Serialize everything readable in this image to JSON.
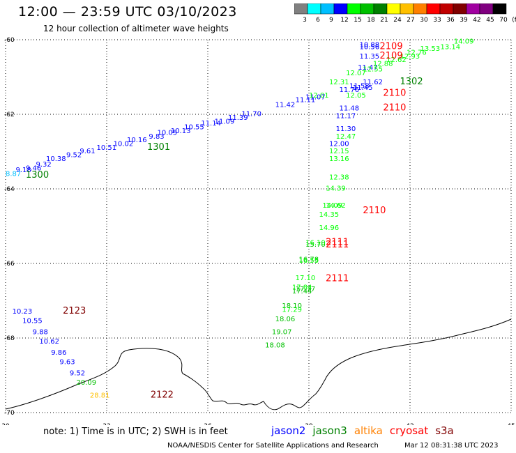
{
  "header": {
    "title": "12:00 — 23:59 UTC 03/10/2023",
    "subtitle": "12 hour collection of altimeter wave heights"
  },
  "colorbar": {
    "labels": [
      "3",
      "6",
      "9",
      "12",
      "15",
      "18",
      "21",
      "24",
      "27",
      "30",
      "33",
      "36",
      "39",
      "42",
      "45",
      "70",
      "(ft)"
    ],
    "colors": [
      "#808080",
      "#00ffff",
      "#00bfff",
      "#0000ff",
      "#00ff00",
      "#00c000",
      "#008000",
      "#ffff00",
      "#ffc000",
      "#ff8000",
      "#ff0000",
      "#c00000",
      "#800000",
      "#a000a0",
      "#800080",
      "#000000"
    ]
  },
  "map": {
    "lon_range": [
      30,
      45
    ],
    "lat_range": [
      -70,
      -60
    ],
    "lon_labels": [
      "30",
      "33",
      "36",
      "39",
      "42",
      "45"
    ],
    "lat_labels": [
      "-60",
      "-62",
      "-64",
      "-66",
      "-68",
      "-70"
    ],
    "grid": "dotted"
  },
  "observations": [
    {
      "text": "10.88",
      "lon": 40.5,
      "lat": -60.2,
      "color": "#0000ff"
    },
    {
      "text": "10.56",
      "lon": 40.5,
      "lat": -60.25,
      "color": "#0000ff"
    },
    {
      "text": "11.35",
      "lon": 40.5,
      "lat": -60.5,
      "color": "#0000ff"
    },
    {
      "text": "11.47",
      "lon": 40.45,
      "lat": -60.8,
      "color": "#0000ff"
    },
    {
      "text": "11.62",
      "lon": 40.6,
      "lat": -61.2,
      "color": "#0000ff"
    },
    {
      "text": "11.58",
      "lon": 40.2,
      "lat": -61.3,
      "color": "#0000ff"
    },
    {
      "text": "11.45",
      "lon": 40.3,
      "lat": -61.35,
      "color": "#0000ff"
    },
    {
      "text": "11.76",
      "lon": 39.9,
      "lat": -61.4,
      "color": "#0000ff"
    },
    {
      "text": "11.48",
      "lon": 39.9,
      "lat": -61.9,
      "color": "#0000ff"
    },
    {
      "text": "11.17",
      "lon": 39.8,
      "lat": -62.1,
      "color": "#0000ff"
    },
    {
      "text": "11.30",
      "lon": 39.8,
      "lat": -62.45,
      "color": "#0000ff"
    },
    {
      "text": "12.00",
      "lon": 39.6,
      "lat": -62.85,
      "color": "#0000ff"
    },
    {
      "text": "11.07",
      "lon": 38.9,
      "lat": -61.6,
      "color": "#0000ff"
    },
    {
      "text": "11.11",
      "lon": 38.6,
      "lat": -61.67,
      "color": "#0000ff"
    },
    {
      "text": "11.42",
      "lon": 38.0,
      "lat": -61.8,
      "color": "#0000ff"
    },
    {
      "text": "11.70",
      "lon": 37.0,
      "lat": -62.05,
      "color": "#0000ff"
    },
    {
      "text": "11.39",
      "lon": 36.6,
      "lat": -62.15,
      "color": "#0000ff"
    },
    {
      "text": "11.09",
      "lon": 36.2,
      "lat": -62.25,
      "color": "#0000ff"
    },
    {
      "text": "11.14",
      "lon": 35.8,
      "lat": -62.3,
      "color": "#0000ff"
    },
    {
      "text": "10.55",
      "lon": 35.3,
      "lat": -62.4,
      "color": "#0000ff"
    },
    {
      "text": "10.13",
      "lon": 34.9,
      "lat": -62.5,
      "color": "#0000ff"
    },
    {
      "text": "10.05",
      "lon": 34.5,
      "lat": -62.55,
      "color": "#0000ff"
    },
    {
      "text": "9.83",
      "lon": 34.25,
      "lat": -62.65,
      "color": "#0000ff"
    },
    {
      "text": "10.16",
      "lon": 33.6,
      "lat": -62.75,
      "color": "#0000ff"
    },
    {
      "text": "10.02",
      "lon": 33.2,
      "lat": -62.85,
      "color": "#0000ff"
    },
    {
      "text": "10.51",
      "lon": 32.7,
      "lat": -62.95,
      "color": "#0000ff"
    },
    {
      "text": "9.61",
      "lon": 32.2,
      "lat": -63.05,
      "color": "#0000ff"
    },
    {
      "text": "9.52",
      "lon": 31.8,
      "lat": -63.15,
      "color": "#0000ff"
    },
    {
      "text": "10.38",
      "lon": 31.2,
      "lat": -63.25,
      "color": "#0000ff"
    },
    {
      "text": "9.32",
      "lon": 30.9,
      "lat": -63.4,
      "color": "#0000ff"
    },
    {
      "text": "9.46",
      "lon": 30.6,
      "lat": -63.5,
      "color": "#0000ff"
    },
    {
      "text": "9.18",
      "lon": 30.3,
      "lat": -63.55,
      "color": "#0000ff"
    },
    {
      "text": "8.87",
      "lon": 30.0,
      "lat": -63.65,
      "color": "#00bfff"
    },
    {
      "text": "10.23",
      "lon": 30.2,
      "lat": -67.35,
      "color": "#0000ff"
    },
    {
      "text": "10.55",
      "lon": 30.5,
      "lat": -67.6,
      "color": "#0000ff"
    },
    {
      "text": "9.88",
      "lon": 30.8,
      "lat": -67.9,
      "color": "#0000ff"
    },
    {
      "text": "10.62",
      "lon": 31.0,
      "lat": -68.15,
      "color": "#0000ff"
    },
    {
      "text": "9.86",
      "lon": 31.35,
      "lat": -68.45,
      "color": "#0000ff"
    },
    {
      "text": "9.63",
      "lon": 31.6,
      "lat": -68.7,
      "color": "#0000ff"
    },
    {
      "text": "9.52",
      "lon": 31.9,
      "lat": -69.0,
      "color": "#0000ff"
    },
    {
      "text": "20.09",
      "lon": 32.1,
      "lat": -69.25,
      "color": "#00c000"
    },
    {
      "text": "28.81",
      "lon": 32.5,
      "lat": -69.6,
      "color": "#ffc000"
    },
    {
      "text": "14.09",
      "lon": 43.3,
      "lat": -60.1,
      "color": "#00ff00"
    },
    {
      "text": "13.14",
      "lon": 42.9,
      "lat": -60.25,
      "color": "#00ff00"
    },
    {
      "text": "13.53",
      "lon": 42.3,
      "lat": -60.3,
      "color": "#00ff00"
    },
    {
      "text": "12.76",
      "lon": 41.9,
      "lat": -60.4,
      "color": "#00ff00"
    },
    {
      "text": "12.93",
      "lon": 41.7,
      "lat": -60.5,
      "color": "#00ff00"
    },
    {
      "text": "12.62",
      "lon": 41.3,
      "lat": -60.6,
      "color": "#00ff00"
    },
    {
      "text": "12.88",
      "lon": 40.9,
      "lat": -60.7,
      "color": "#00ff00"
    },
    {
      "text": "12.55",
      "lon": 40.6,
      "lat": -60.85,
      "color": "#00ff00"
    },
    {
      "text": "12.07",
      "lon": 40.1,
      "lat": -60.95,
      "color": "#00ff00"
    },
    {
      "text": "12.31",
      "lon": 39.6,
      "lat": -61.2,
      "color": "#00ff00"
    },
    {
      "text": "12.05",
      "lon": 40.1,
      "lat": -61.55,
      "color": "#00ff00"
    },
    {
      "text": "12.01",
      "lon": 39.0,
      "lat": -61.55,
      "color": "#00ff00"
    },
    {
      "text": "12.47",
      "lon": 39.8,
      "lat": -62.65,
      "color": "#00ff00"
    },
    {
      "text": "12.15",
      "lon": 39.6,
      "lat": -63.05,
      "color": "#00ff00"
    },
    {
      "text": "13.16",
      "lon": 39.6,
      "lat": -63.25,
      "color": "#00ff00"
    },
    {
      "text": "12.38",
      "lon": 39.6,
      "lat": -63.75,
      "color": "#00ff00"
    },
    {
      "text": "14.39",
      "lon": 39.5,
      "lat": -64.05,
      "color": "#00ff00"
    },
    {
      "text": "14.09",
      "lon": 39.4,
      "lat": -64.5,
      "color": "#00ff00"
    },
    {
      "text": "14.62",
      "lon": 39.5,
      "lat": -64.5,
      "color": "#00ff00"
    },
    {
      "text": "14.35",
      "lon": 39.3,
      "lat": -64.75,
      "color": "#00ff00"
    },
    {
      "text": "14.96",
      "lon": 39.3,
      "lat": -65.1,
      "color": "#00ff00"
    },
    {
      "text": "15.70",
      "lon": 38.9,
      "lat": -65.55,
      "color": "#00c000"
    },
    {
      "text": "16.10",
      "lon": 38.9,
      "lat": -65.5,
      "color": "#00ff00"
    },
    {
      "text": "16.78",
      "lon": 38.7,
      "lat": -65.95,
      "color": "#00c000"
    },
    {
      "text": "16.55",
      "lon": 38.7,
      "lat": -65.98,
      "color": "#00ff00"
    },
    {
      "text": "17.10",
      "lon": 38.6,
      "lat": -66.45,
      "color": "#00ff00"
    },
    {
      "text": "17.84",
      "lon": 38.5,
      "lat": -66.7,
      "color": "#00ff00"
    },
    {
      "text": "17.77",
      "lon": 38.6,
      "lat": -66.75,
      "color": "#00c000"
    },
    {
      "text": "17.44",
      "lon": 38.5,
      "lat": -66.8,
      "color": "#00c000"
    },
    {
      "text": "18.10",
      "lon": 38.2,
      "lat": -67.2,
      "color": "#00c000"
    },
    {
      "text": "17.29",
      "lon": 38.2,
      "lat": -67.3,
      "color": "#00ff00"
    },
    {
      "text": "18.06",
      "lon": 38.0,
      "lat": -67.55,
      "color": "#00c000"
    },
    {
      "text": "19.07",
      "lon": 37.9,
      "lat": -67.9,
      "color": "#00c000"
    },
    {
      "text": "18.08",
      "lon": 37.7,
      "lat": -68.25,
      "color": "#00c000"
    }
  ],
  "passes": [
    {
      "text": "2109",
      "lon": 41.1,
      "lat": -60.25,
      "color": "#ff0000"
    },
    {
      "text": "2109",
      "lon": 41.1,
      "lat": -60.5,
      "color": "#ff0000"
    },
    {
      "text": "1302",
      "lon": 41.7,
      "lat": -61.2,
      "color": "#008000"
    },
    {
      "text": "2110",
      "lon": 41.2,
      "lat": -61.5,
      "color": "#ff0000"
    },
    {
      "text": "2110",
      "lon": 41.2,
      "lat": -61.9,
      "color": "#ff0000"
    },
    {
      "text": "1301",
      "lon": 34.2,
      "lat": -62.95,
      "color": "#008000"
    },
    {
      "text": "1300",
      "lon": 30.6,
      "lat": -63.7,
      "color": "#008000"
    },
    {
      "text": "2110",
      "lon": 40.6,
      "lat": -64.65,
      "color": "#ff0000"
    },
    {
      "text": "2111",
      "lon": 39.5,
      "lat": -65.5,
      "color": "#ff0000"
    },
    {
      "text": "2111",
      "lon": 39.5,
      "lat": -65.57,
      "color": "#ff0000"
    },
    {
      "text": "2111",
      "lon": 39.5,
      "lat": -66.48,
      "color": "#ff0000"
    },
    {
      "text": "2123",
      "lon": 31.7,
      "lat": -67.35,
      "color": "#800000"
    },
    {
      "text": "2122",
      "lon": 34.3,
      "lat": -69.6,
      "color": "#800000"
    }
  ],
  "footer": {
    "note": "note: 1) Time is in UTC; 2) SWH is in feet",
    "credit": "NOAA/NESDIS Center for Satellite Applications and Research",
    "timestamp": "Mar 12 08:31:38 UTC 2023"
  },
  "legend": [
    {
      "name": "jason2",
      "color": "#0000ff"
    },
    {
      "name": "jason3",
      "color": "#008000"
    },
    {
      "name": "altika",
      "color": "#ff8000"
    },
    {
      "name": "cryosat",
      "color": "#ff0000"
    },
    {
      "name": "s3a",
      "color": "#800000"
    }
  ]
}
